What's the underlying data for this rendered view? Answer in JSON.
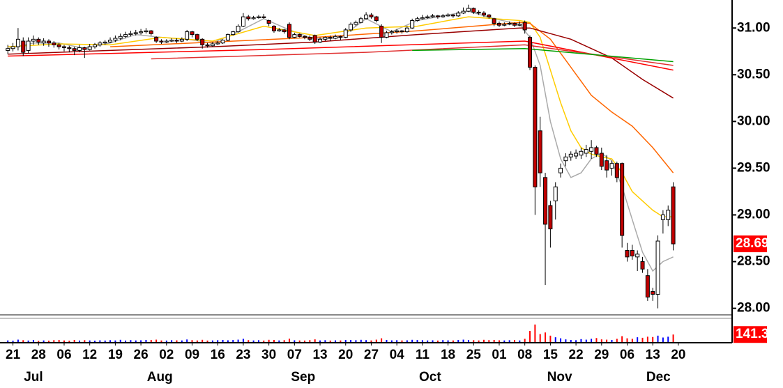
{
  "chart_data": {
    "type": "candlestick",
    "up_color": "#ffffff",
    "down_color": "#c00000",
    "outline_color": "#000000",
    "volume_up_color": "#0000ff",
    "volume_down_color": "#ff0000",
    "label_box_color": "#ff0000",
    "ylim": [
      27.93,
      31.3
    ],
    "yticks": [
      {
        "value": 31,
        "label": "31.00"
      },
      {
        "value": 30.5,
        "label": "30.50"
      },
      {
        "value": 30,
        "label": "30.00"
      },
      {
        "value": 29.5,
        "label": "29.50"
      },
      {
        "value": 29,
        "label": "29.00"
      },
      {
        "value": 28.5,
        "label": "28.50"
      },
      {
        "value": 28,
        "label": "28.00"
      }
    ],
    "xlim": [
      -1.53,
      141.5
    ],
    "xticks": [
      {
        "value": 1,
        "label": "21"
      },
      {
        "value": 6,
        "label": "28"
      },
      {
        "value": 11,
        "label": "06"
      },
      {
        "value": 16,
        "label": "12"
      },
      {
        "value": 21,
        "label": "19"
      },
      {
        "value": 26,
        "label": "26"
      },
      {
        "value": 31,
        "label": "02"
      },
      {
        "value": 36,
        "label": "09"
      },
      {
        "value": 41,
        "label": "16"
      },
      {
        "value": 46,
        "label": "23"
      },
      {
        "value": 51,
        "label": "30"
      },
      {
        "value": 56,
        "label": "07"
      },
      {
        "value": 61,
        "label": "13"
      },
      {
        "value": 66,
        "label": "20"
      },
      {
        "value": 71,
        "label": "27"
      },
      {
        "value": 76,
        "label": "04"
      },
      {
        "value": 81,
        "label": "11"
      },
      {
        "value": 86,
        "label": "18"
      },
      {
        "value": 91,
        "label": "25"
      },
      {
        "value": 96,
        "label": "01"
      },
      {
        "value": 101,
        "label": "08"
      },
      {
        "value": 106,
        "label": "15"
      },
      {
        "value": 111,
        "label": "22"
      },
      {
        "value": 116,
        "label": "29"
      },
      {
        "value": 121,
        "label": "06"
      },
      {
        "value": 126,
        "label": "13"
      },
      {
        "value": 131,
        "label": "20"
      }
    ],
    "months": [
      {
        "value": 5,
        "label": "Jul"
      },
      {
        "value": 29.7,
        "label": "Aug"
      },
      {
        "value": 57.7,
        "label": "Sep"
      },
      {
        "value": 82.5,
        "label": "Oct"
      },
      {
        "value": 107.8,
        "label": "Nov"
      },
      {
        "value": 127.1,
        "label": "Dec"
      }
    ],
    "ohlc": [
      [
        30.76,
        30.82,
        30.72,
        30.78
      ],
      [
        30.78,
        30.84,
        30.75,
        30.8
      ],
      [
        30.8,
        31.0,
        30.76,
        30.88
      ],
      [
        30.86,
        30.9,
        30.7,
        30.74
      ],
      [
        30.76,
        30.9,
        30.73,
        30.86
      ],
      [
        30.86,
        30.92,
        30.82,
        30.88
      ],
      [
        30.88,
        30.9,
        30.82,
        30.85
      ],
      [
        30.84,
        30.89,
        30.81,
        30.86
      ],
      [
        30.86,
        30.88,
        30.8,
        30.84
      ],
      [
        30.84,
        30.86,
        30.79,
        30.82
      ],
      [
        30.82,
        30.84,
        30.77,
        30.8
      ],
      [
        30.8,
        30.82,
        30.75,
        30.79
      ],
      [
        30.79,
        30.81,
        30.74,
        30.78
      ],
      [
        30.78,
        30.8,
        30.71,
        30.76
      ],
      [
        30.76,
        30.82,
        30.74,
        30.79
      ],
      [
        30.79,
        30.8,
        30.68,
        30.77
      ],
      [
        30.77,
        30.83,
        30.76,
        30.8
      ],
      [
        30.8,
        30.84,
        30.78,
        30.82
      ],
      [
        30.82,
        30.86,
        30.8,
        30.84
      ],
      [
        30.84,
        30.87,
        30.82,
        30.85
      ],
      [
        30.85,
        30.9,
        30.84,
        30.87
      ],
      [
        30.87,
        30.92,
        30.85,
        30.89
      ],
      [
        30.89,
        30.94,
        30.87,
        30.91
      ],
      [
        30.91,
        30.96,
        30.89,
        30.93
      ],
      [
        30.93,
        30.97,
        30.91,
        30.94
      ],
      [
        30.94,
        30.98,
        30.92,
        30.95
      ],
      [
        30.95,
        30.99,
        30.93,
        30.96
      ],
      [
        30.96,
        31.0,
        30.94,
        30.97
      ],
      [
        30.97,
        30.98,
        30.92,
        30.94
      ],
      [
        30.9,
        30.91,
        30.84,
        30.86
      ],
      [
        30.86,
        30.88,
        30.83,
        30.85
      ],
      [
        30.85,
        30.88,
        30.84,
        30.86
      ],
      [
        30.86,
        30.89,
        30.85,
        30.87
      ],
      [
        30.87,
        30.89,
        30.84,
        30.86
      ],
      [
        30.86,
        30.9,
        30.85,
        30.88
      ],
      [
        30.88,
        30.98,
        30.86,
        30.96
      ],
      [
        30.96,
        30.97,
        30.9,
        30.93
      ],
      [
        30.93,
        30.94,
        30.86,
        30.88
      ],
      [
        30.88,
        30.89,
        30.78,
        30.82
      ],
      [
        30.82,
        30.84,
        30.79,
        30.81
      ],
      [
        30.81,
        30.85,
        30.8,
        30.83
      ],
      [
        30.83,
        30.86,
        30.82,
        30.84
      ],
      [
        30.84,
        30.88,
        30.83,
        30.87
      ],
      [
        30.87,
        30.94,
        30.86,
        30.93
      ],
      [
        30.93,
        30.97,
        30.92,
        30.96
      ],
      [
        30.96,
        31.04,
        30.95,
        31.02
      ],
      [
        31.02,
        31.16,
        31.01,
        31.12
      ],
      [
        31.12,
        31.14,
        31.08,
        31.1
      ],
      [
        31.1,
        31.13,
        31.09,
        31.11
      ],
      [
        31.11,
        31.14,
        31.1,
        31.12
      ],
      [
        31.12,
        31.15,
        31.1,
        31.11
      ],
      [
        31.08,
        31.09,
        31.02,
        31.05
      ],
      [
        31.02,
        31.03,
        30.95,
        30.97
      ],
      [
        30.97,
        31.0,
        30.96,
        30.98
      ],
      [
        30.98,
        30.99,
        30.94,
        30.96
      ],
      [
        31.04,
        31.06,
        30.88,
        30.9
      ],
      [
        30.9,
        30.95,
        30.89,
        30.93
      ],
      [
        30.93,
        30.94,
        30.9,
        30.91
      ],
      [
        30.91,
        30.92,
        30.88,
        30.9
      ],
      [
        30.9,
        30.92,
        30.86,
        30.88
      ],
      [
        30.92,
        30.93,
        30.83,
        30.85
      ],
      [
        30.85,
        30.9,
        30.84,
        30.88
      ],
      [
        30.88,
        30.91,
        30.86,
        30.9
      ],
      [
        30.9,
        30.92,
        30.86,
        30.89
      ],
      [
        30.89,
        30.93,
        30.88,
        30.91
      ],
      [
        30.91,
        30.92,
        30.87,
        30.9
      ],
      [
        30.9,
        31.0,
        30.89,
        30.98
      ],
      [
        30.98,
        31.06,
        30.96,
        31.04
      ],
      [
        31.04,
        31.08,
        31.02,
        31.06
      ],
      [
        31.06,
        31.12,
        31.05,
        31.1
      ],
      [
        31.1,
        31.17,
        31.09,
        31.14
      ],
      [
        31.14,
        31.16,
        31.1,
        31.12
      ],
      [
        31.12,
        31.13,
        31.06,
        31.08
      ],
      [
        31.02,
        31.04,
        30.84,
        30.9
      ],
      [
        30.9,
        30.97,
        30.89,
        30.95
      ],
      [
        30.95,
        30.98,
        30.93,
        30.96
      ],
      [
        30.96,
        30.99,
        30.94,
        30.97
      ],
      [
        30.97,
        30.98,
        30.94,
        30.96
      ],
      [
        30.96,
        31.02,
        30.95,
        31.0
      ],
      [
        31.0,
        31.1,
        30.99,
        31.08
      ],
      [
        31.08,
        31.12,
        31.07,
        31.1
      ],
      [
        31.1,
        31.14,
        31.09,
        31.11
      ],
      [
        31.11,
        31.14,
        31.1,
        31.12
      ],
      [
        31.12,
        31.15,
        31.11,
        31.13
      ],
      [
        31.13,
        31.14,
        31.1,
        31.12
      ],
      [
        31.12,
        31.15,
        31.11,
        31.13
      ],
      [
        31.13,
        31.16,
        31.12,
        31.14
      ],
      [
        31.14,
        31.15,
        31.11,
        31.13
      ],
      [
        31.13,
        31.18,
        31.12,
        31.16
      ],
      [
        31.16,
        31.22,
        31.15,
        31.18
      ],
      [
        31.18,
        31.25,
        31.17,
        31.21
      ],
      [
        31.21,
        31.22,
        31.15,
        31.17
      ],
      [
        31.17,
        31.19,
        31.14,
        31.16
      ],
      [
        31.16,
        31.18,
        31.12,
        31.14
      ],
      [
        31.14,
        31.15,
        31.1,
        31.12
      ],
      [
        31.1,
        31.11,
        31.02,
        31.05
      ],
      [
        31.05,
        31.07,
        31.01,
        31.03
      ],
      [
        31.03,
        31.06,
        31.02,
        31.04
      ],
      [
        31.04,
        31.07,
        31.03,
        31.05
      ],
      [
        31.05,
        31.06,
        31.01,
        31.03
      ],
      [
        31.03,
        31.07,
        31.02,
        31.04
      ],
      [
        31.06,
        31.08,
        30.94,
        30.98
      ],
      [
        30.9,
        30.92,
        30.55,
        30.58
      ],
      [
        30.58,
        30.6,
        29.0,
        29.3
      ],
      [
        29.9,
        30.05,
        29.3,
        29.45
      ],
      [
        29.4,
        29.45,
        28.25,
        28.9
      ],
      [
        29.1,
        29.15,
        28.65,
        28.85
      ],
      [
        29.15,
        29.35,
        28.95,
        29.3
      ],
      [
        29.45,
        29.55,
        29.4,
        29.5
      ],
      [
        29.58,
        29.66,
        29.52,
        29.62
      ],
      [
        29.62,
        29.68,
        29.58,
        29.65
      ],
      [
        29.63,
        29.7,
        29.6,
        29.66
      ],
      [
        29.64,
        29.72,
        29.6,
        29.68
      ],
      [
        29.66,
        29.75,
        29.62,
        29.7
      ],
      [
        29.68,
        29.8,
        29.6,
        29.72
      ],
      [
        29.72,
        29.74,
        29.62,
        29.65
      ],
      [
        29.66,
        29.72,
        29.48,
        29.52
      ],
      [
        29.58,
        29.64,
        29.4,
        29.48
      ],
      [
        29.5,
        29.58,
        29.42,
        29.55
      ],
      [
        29.55,
        29.57,
        29.35,
        29.4
      ],
      [
        29.55,
        29.56,
        28.65,
        28.78
      ],
      [
        28.62,
        28.7,
        28.5,
        28.55
      ],
      [
        28.62,
        28.68,
        28.52,
        28.56
      ],
      [
        28.55,
        28.62,
        28.4,
        28.58
      ],
      [
        28.5,
        28.55,
        28.38,
        28.42
      ],
      [
        28.35,
        28.42,
        28.08,
        28.12
      ],
      [
        28.18,
        28.22,
        28.08,
        28.15
      ],
      [
        28.15,
        28.78,
        28.0,
        28.72
      ],
      [
        28.95,
        29.05,
        28.8,
        29.0
      ],
      [
        28.95,
        29.1,
        28.88,
        29.05
      ],
      [
        29.3,
        29.35,
        28.62,
        28.69
      ]
    ],
    "vlim": [
      0,
      420
    ],
    "volume": [
      30,
      25,
      45,
      35,
      28,
      40,
      22,
      30,
      26,
      35,
      38,
      30,
      25,
      40,
      28,
      35,
      30,
      26,
      32,
      28,
      35,
      30,
      42,
      28,
      36,
      30,
      33,
      40,
      38,
      45,
      30,
      28,
      35,
      32,
      30,
      48,
      36,
      30,
      42,
      28,
      30,
      35,
      40,
      33,
      38,
      45,
      60,
      36,
      30,
      35,
      28,
      42,
      40,
      30,
      35,
      62,
      33,
      30,
      28,
      36,
      50,
      30,
      35,
      28,
      32,
      30,
      40,
      38,
      35,
      42,
      36,
      30,
      45,
      70,
      40,
      32,
      35,
      30,
      33,
      42,
      38,
      35,
      30,
      33,
      28,
      36,
      32,
      30,
      40,
      45,
      38,
      35,
      30,
      42,
      36,
      40,
      33,
      30,
      35,
      38,
      30,
      60,
      210,
      330,
      150,
      180,
      120,
      90,
      70,
      50,
      40,
      35,
      55,
      45,
      60,
      75,
      50,
      45,
      40,
      60,
      110,
      70,
      60,
      90,
      80,
      100,
      95,
      120,
      85,
      100,
      141.3
    ],
    "lines": [
      {
        "color": "#aaaaaa",
        "x": [
          0,
          5,
          10,
          15,
          20,
          25,
          30,
          35,
          40,
          45,
          50,
          55,
          60,
          65,
          70,
          75,
          80,
          85,
          90,
          95,
          100,
          102,
          104,
          106,
          108,
          110,
          112,
          114,
          116,
          118,
          120,
          122,
          124,
          126,
          128,
          130
        ],
        "values": [
          30.78,
          30.84,
          30.84,
          30.78,
          30.84,
          30.93,
          30.9,
          30.88,
          30.84,
          30.96,
          31.1,
          30.98,
          30.88,
          30.9,
          31.1,
          30.96,
          31.08,
          31.13,
          31.18,
          31.1,
          31.04,
          30.9,
          30.6,
          30.0,
          29.6,
          29.4,
          29.45,
          29.6,
          29.66,
          29.58,
          29.3,
          28.95,
          28.6,
          28.4,
          28.5,
          28.55
        ]
      },
      {
        "color": "#ffcc00",
        "x": [
          0,
          10,
          20,
          30,
          40,
          50,
          60,
          70,
          80,
          90,
          100,
          102,
          104,
          106,
          108,
          110,
          112,
          114,
          116,
          118,
          120,
          122,
          124,
          126,
          128,
          130
        ],
        "values": [
          30.8,
          30.83,
          30.82,
          30.9,
          30.86,
          31.02,
          30.92,
          31.0,
          31.02,
          31.12,
          31.08,
          31.06,
          30.9,
          30.55,
          30.2,
          29.9,
          29.72,
          29.65,
          29.62,
          29.6,
          29.45,
          29.25,
          29.15,
          29.05,
          28.98,
          28.98
        ]
      },
      {
        "color": "#ff6600",
        "x": [
          20,
          40,
          60,
          80,
          100,
          102,
          106,
          110,
          114,
          118,
          122,
          126,
          130
        ],
        "values": [
          30.8,
          30.85,
          30.9,
          30.97,
          31.06,
          31.05,
          30.88,
          30.58,
          30.28,
          30.1,
          29.95,
          29.72,
          29.45
        ]
      },
      {
        "color": "#990000",
        "x": [
          0,
          20,
          40,
          60,
          80,
          100,
          102,
          110,
          118,
          124,
          130
        ],
        "values": [
          30.72,
          30.76,
          30.8,
          30.85,
          30.93,
          31.0,
          31.0,
          30.88,
          30.68,
          30.45,
          30.25
        ]
      },
      {
        "color": "#ff0000",
        "x": [
          0,
          50,
          101,
          130
        ],
        "values": [
          30.7,
          30.77,
          30.86,
          30.55
        ]
      },
      {
        "color": "#e03030",
        "x": [
          28,
          70,
          101,
          130
        ],
        "values": [
          30.67,
          30.74,
          30.82,
          30.6
        ]
      },
      {
        "color": "#00a000",
        "x": [
          79,
          101,
          130
        ],
        "values": [
          30.76,
          30.78,
          30.64
        ]
      }
    ]
  }
}
